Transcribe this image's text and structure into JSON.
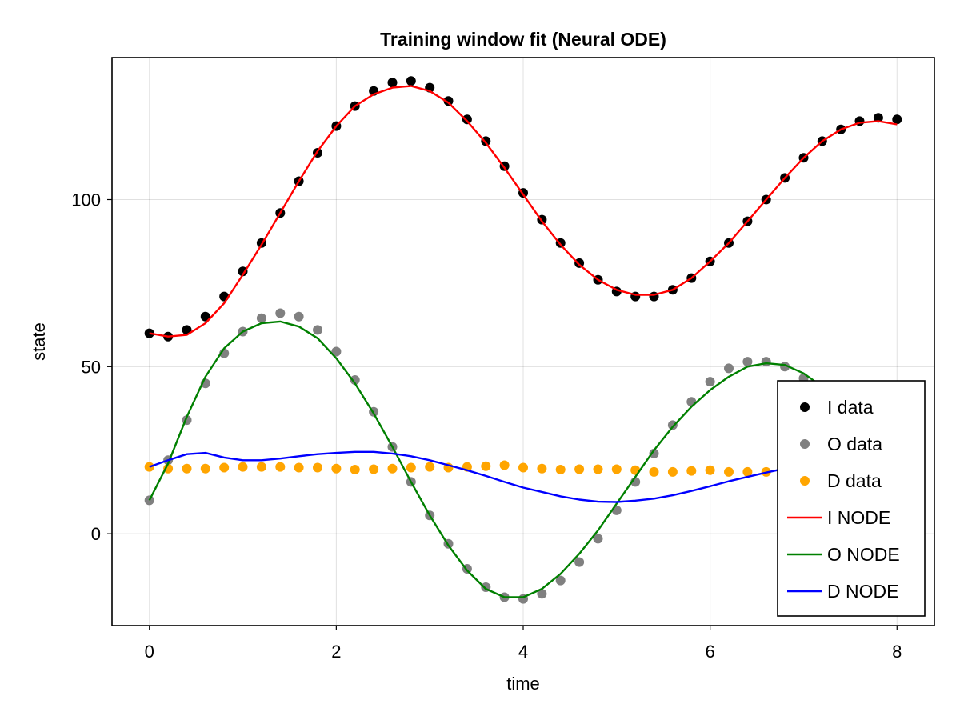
{
  "chart_data": {
    "type": "line",
    "title": "Training window fit (Neural ODE)",
    "xlabel": "time",
    "ylabel": "state",
    "xlim": [
      -0.4,
      8.4
    ],
    "ylim": [
      -27.5,
      142.5
    ],
    "xticks": [
      0,
      2,
      4,
      6,
      8
    ],
    "yticks": [
      0,
      50,
      100
    ],
    "grid": true,
    "legend_position": "bottom-right",
    "x": [
      0,
      0.2,
      0.4,
      0.6,
      0.8,
      1.0,
      1.2,
      1.4,
      1.6,
      1.8,
      2.0,
      2.2,
      2.4,
      2.6,
      2.8,
      3.0,
      3.2,
      3.4,
      3.6,
      3.8,
      4.0,
      4.2,
      4.4,
      4.6,
      4.8,
      5.0,
      5.2,
      5.4,
      5.6,
      5.8,
      6.0,
      6.2,
      6.4,
      6.6,
      6.8,
      7.0,
      7.2,
      7.4,
      7.6,
      7.8,
      8.0
    ],
    "series": [
      {
        "name": "I data",
        "kind": "scatter",
        "color": "#000000",
        "values": [
          60,
          59,
          61,
          65,
          71,
          78.5,
          87,
          96,
          105.5,
          114,
          122,
          128,
          132.5,
          135,
          135.5,
          133.5,
          129.5,
          124,
          117.5,
          110,
          102,
          94,
          87,
          81,
          76,
          72.5,
          71,
          71,
          73,
          76.5,
          81.5,
          87,
          93.5,
          100,
          106.5,
          112.5,
          117.5,
          121,
          123.5,
          124.5,
          124
        ]
      },
      {
        "name": "O data",
        "kind": "scatter",
        "color": "#808080",
        "values": [
          10,
          22,
          34,
          45,
          54,
          60.5,
          64.5,
          66,
          65,
          61,
          54.5,
          46,
          36.5,
          26,
          15.5,
          5.5,
          -3,
          -10.5,
          -16,
          -19,
          -19.5,
          -18,
          -14,
          -8.5,
          -1.5,
          7,
          15.5,
          24,
          32.5,
          39.5,
          45.5,
          49.5,
          51.5,
          51.5,
          50,
          46.5,
          41,
          34.5,
          29,
          25,
          22.5
        ]
      },
      {
        "name": "D data",
        "kind": "scatter",
        "color": "#FFA500",
        "values": [
          20,
          19.5,
          19.5,
          19.5,
          19.8,
          20,
          20,
          20,
          19.8,
          19.8,
          19.5,
          19.2,
          19.3,
          19.5,
          19.8,
          20,
          19.8,
          20,
          20.2,
          20.5,
          19.8,
          19.5,
          19.2,
          19.3,
          19.3,
          19.3,
          19,
          18.5,
          18.5,
          18.8,
          19,
          18.5,
          18.5,
          18.5,
          18.5,
          18.5,
          18.5,
          18.5,
          18.5,
          18.5,
          18.5
        ]
      },
      {
        "name": "I NODE",
        "kind": "line",
        "color": "#FF0000",
        "values": [
          60,
          59,
          59.5,
          63,
          69,
          77.5,
          86.5,
          96,
          105.5,
          114.5,
          122,
          128,
          131.5,
          133.5,
          134,
          132.5,
          129,
          123.5,
          117,
          109.5,
          101.5,
          93.5,
          86.5,
          80.5,
          76,
          73,
          71.5,
          71.5,
          73,
          76.5,
          81.5,
          87,
          93.5,
          100,
          106.5,
          112.5,
          117.5,
          121,
          123,
          123.5,
          122.5
        ]
      },
      {
        "name": "O NODE",
        "kind": "line",
        "color": "#008000",
        "values": [
          10,
          21,
          35,
          47,
          55.5,
          60.5,
          63,
          63.5,
          62,
          58.5,
          52.5,
          45,
          36,
          26,
          15.5,
          5.5,
          -3.5,
          -11,
          -16.5,
          -19,
          -19,
          -16.5,
          -12,
          -6,
          1,
          9,
          17,
          25,
          32,
          38,
          43,
          47,
          50,
          51,
          50.5,
          48,
          44,
          38.5,
          32.5,
          27,
          22.5
        ]
      },
      {
        "name": "D NODE",
        "kind": "line",
        "color": "#0000FF",
        "values": [
          20,
          22,
          23.8,
          24.2,
          22.8,
          22,
          22,
          22.5,
          23.2,
          23.8,
          24.2,
          24.5,
          24.5,
          24,
          23.2,
          22,
          20.5,
          19,
          17.3,
          15.5,
          13.8,
          12.5,
          11.2,
          10.2,
          9.6,
          9.5,
          9.9,
          10.5,
          11.5,
          12.8,
          14.2,
          15.7,
          17,
          18.3,
          19.5,
          20.5,
          21,
          21.3,
          21.5,
          21.5,
          21.5
        ]
      }
    ]
  }
}
